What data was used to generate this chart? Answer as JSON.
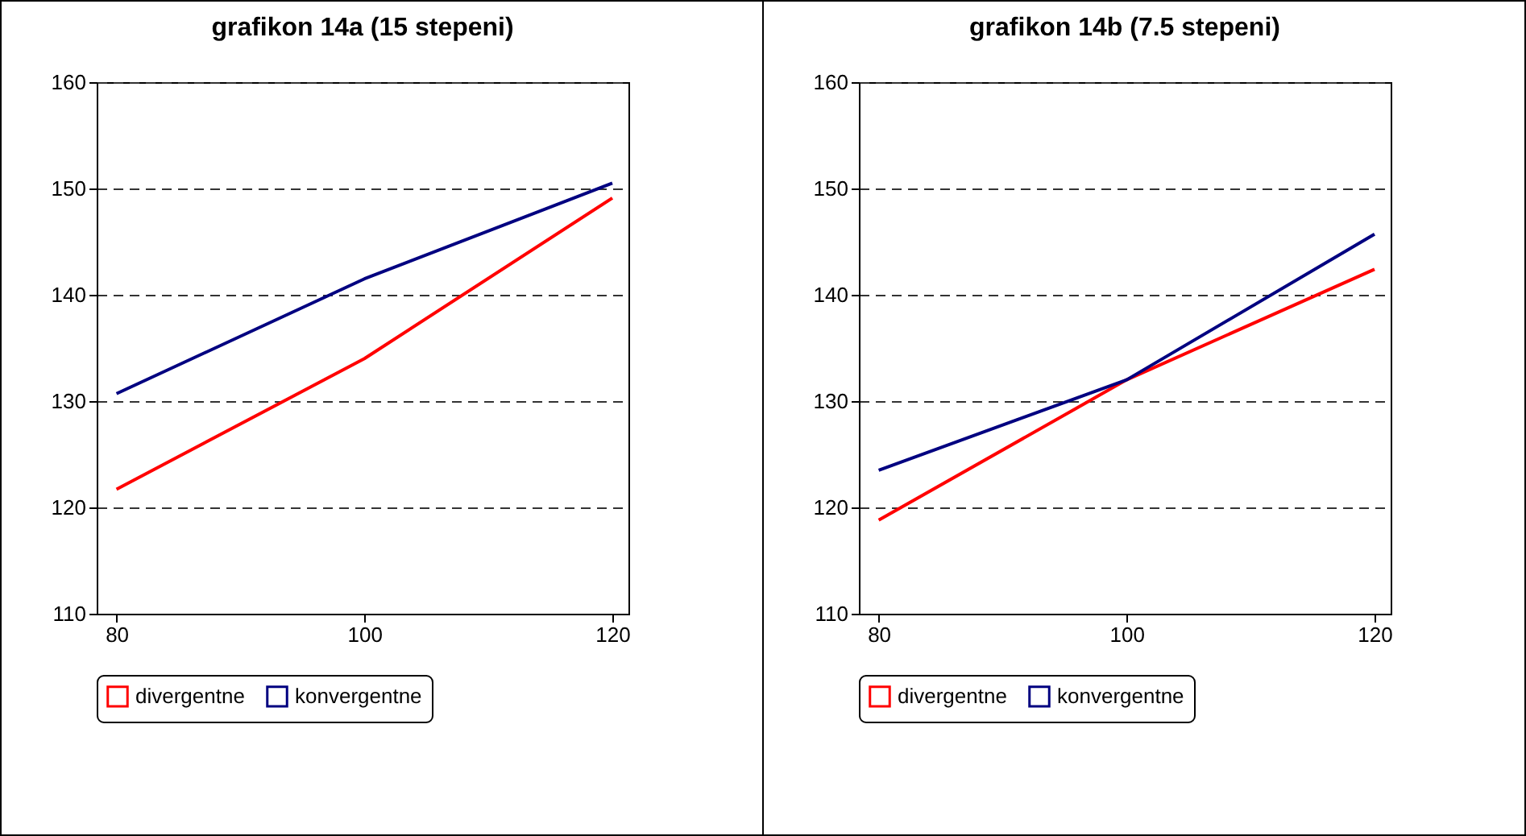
{
  "chart_data": [
    {
      "type": "line",
      "title": "grafikon 14a (15 stepeni)",
      "x": [
        80,
        100,
        120
      ],
      "xlim": [
        78.4,
        121.3
      ],
      "xticks": [
        80,
        100,
        120
      ],
      "ylim": [
        110,
        160
      ],
      "yticks": [
        110,
        120,
        130,
        140,
        150,
        160
      ],
      "grid": "y",
      "legend": "bottom",
      "series": [
        {
          "name": "divergentne",
          "color": "#ff0000",
          "values": [
            121.7,
            134,
            149.1
          ]
        },
        {
          "name": "konvergentne",
          "color": "#000080",
          "values": [
            130.7,
            141.5,
            150.5
          ]
        }
      ]
    },
    {
      "type": "line",
      "title": "grafikon 14b (7.5 stepeni)",
      "x": [
        80,
        100,
        120
      ],
      "xlim": [
        78.4,
        121.3
      ],
      "xticks": [
        80,
        100,
        120
      ],
      "ylim": [
        110,
        160
      ],
      "yticks": [
        110,
        120,
        130,
        140,
        150,
        160
      ],
      "grid": "y",
      "legend": "bottom",
      "series": [
        {
          "name": "divergentne",
          "color": "#ff0000",
          "values": [
            118.8,
            132,
            142.4
          ]
        },
        {
          "name": "konvergentne",
          "color": "#000080",
          "values": [
            123.5,
            132,
            145.7
          ]
        }
      ]
    }
  ]
}
